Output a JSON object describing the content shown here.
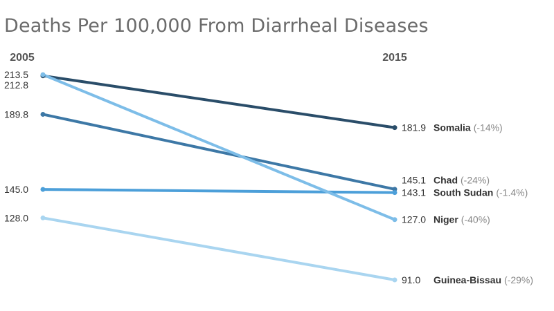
{
  "chart_data": {
    "type": "line",
    "title": "Deaths Per 100,000 From Diarrheal Diseases",
    "x": [
      "2005",
      "2015"
    ],
    "series": [
      {
        "name": "Somalia",
        "values": [
          212.8,
          181.9
        ],
        "value_labels": [
          "212.8",
          "181.9"
        ],
        "change_label": "(-14%)",
        "color": "#2a4d69"
      },
      {
        "name": "Chad",
        "values": [
          189.8,
          145.1
        ],
        "value_labels": [
          "189.8",
          "145.1"
        ],
        "change_label": "(-24%)",
        "color": "#3d78a6"
      },
      {
        "name": "South Sudan",
        "values": [
          145.0,
          143.1
        ],
        "value_labels": [
          "145.0",
          "143.1"
        ],
        "change_label": "(-1.4%)",
        "color": "#4c9fd9"
      },
      {
        "name": "Niger",
        "values": [
          213.5,
          127.0
        ],
        "value_labels": [
          "213.5",
          "127.0"
        ],
        "change_label": "(-40%)",
        "color": "#7dbde8"
      },
      {
        "name": "Guinea-Bissau",
        "values": [
          128.0,
          91.0
        ],
        "value_labels": [
          "128.0",
          "91.0"
        ],
        "change_label": "(-29%)",
        "color": "#a9d5f0"
      }
    ],
    "ylim": [
      91.0,
      213.5
    ],
    "grid": false,
    "legend": "none"
  }
}
